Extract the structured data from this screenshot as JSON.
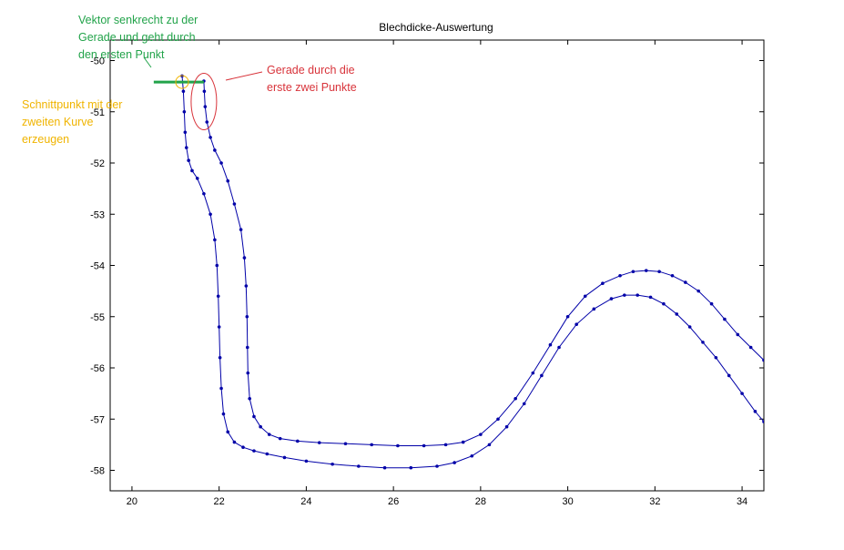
{
  "chart_data": {
    "type": "line",
    "title": "Blechdicke-Auswertung",
    "xlabel": "",
    "ylabel": "",
    "xlim": [
      19.5,
      34.5
    ],
    "ylim": [
      -58.4,
      -49.6
    ],
    "xticks": [
      20,
      22,
      24,
      26,
      28,
      30,
      32,
      34
    ],
    "yticks": [
      -50,
      -51,
      -52,
      -53,
      -54,
      -55,
      -56,
      -57,
      -58
    ],
    "xtick_labels": [
      "20",
      "22",
      "24",
      "26",
      "28",
      "30",
      "32",
      "34"
    ],
    "ytick_labels": [
      "-50",
      "-51",
      "-52",
      "-53",
      "-54",
      "-55",
      "-56",
      "-57",
      "-58"
    ],
    "grid": false,
    "legend": "none",
    "series": [
      {
        "color": "#0000a8",
        "marker": "point",
        "x": [
          21.15,
          21.18,
          21.2,
          21.22,
          21.25,
          21.3,
          21.38,
          21.5,
          21.65,
          21.8,
          21.9,
          21.95,
          21.98,
          22.0,
          22.02,
          22.05,
          22.1,
          22.2,
          22.35,
          22.55,
          22.8,
          23.1,
          23.5,
          24.0,
          24.6,
          25.2,
          25.8,
          26.4,
          27.0,
          27.4,
          27.8,
          28.2,
          28.6,
          29.0,
          29.4,
          29.8,
          30.2,
          30.6,
          31.0,
          31.3,
          31.6,
          31.9,
          32.2,
          32.5,
          32.8,
          33.1,
          33.4,
          33.7,
          34.0,
          34.3,
          34.5
        ],
        "y": [
          -50.3,
          -50.6,
          -51.0,
          -51.4,
          -51.7,
          -51.95,
          -52.15,
          -52.3,
          -52.6,
          -53.0,
          -53.5,
          -54.0,
          -54.6,
          -55.2,
          -55.8,
          -56.4,
          -56.9,
          -57.25,
          -57.45,
          -57.55,
          -57.62,
          -57.68,
          -57.75,
          -57.82,
          -57.88,
          -57.92,
          -57.95,
          -57.95,
          -57.92,
          -57.85,
          -57.72,
          -57.5,
          -57.15,
          -56.7,
          -56.15,
          -55.6,
          -55.15,
          -54.85,
          -54.65,
          -54.58,
          -54.58,
          -54.62,
          -54.75,
          -54.95,
          -55.2,
          -55.5,
          -55.8,
          -56.15,
          -56.5,
          -56.85,
          -57.05
        ]
      },
      {
        "color": "#0000a8",
        "marker": "point",
        "x": [
          21.65,
          21.66,
          21.68,
          21.72,
          21.8,
          21.9,
          22.05,
          22.2,
          22.35,
          22.5,
          22.58,
          22.62,
          22.64,
          22.65,
          22.66,
          22.7,
          22.8,
          22.95,
          23.15,
          23.4,
          23.8,
          24.3,
          24.9,
          25.5,
          26.1,
          26.7,
          27.2,
          27.6,
          28.0,
          28.4,
          28.8,
          29.2,
          29.6,
          30.0,
          30.4,
          30.8,
          31.2,
          31.5,
          31.8,
          32.1,
          32.4,
          32.7,
          33.0,
          33.3,
          33.6,
          33.9,
          34.2,
          34.5
        ],
        "y": [
          -50.4,
          -50.6,
          -50.9,
          -51.2,
          -51.5,
          -51.75,
          -52.0,
          -52.35,
          -52.8,
          -53.3,
          -53.85,
          -54.4,
          -55.0,
          -55.6,
          -56.1,
          -56.6,
          -56.95,
          -57.15,
          -57.3,
          -57.38,
          -57.43,
          -57.46,
          -57.48,
          -57.5,
          -57.52,
          -57.52,
          -57.5,
          -57.45,
          -57.3,
          -57.0,
          -56.6,
          -56.1,
          -55.55,
          -55.0,
          -54.6,
          -54.35,
          -54.2,
          -54.12,
          -54.1,
          -54.12,
          -54.2,
          -54.33,
          -54.5,
          -54.75,
          -55.05,
          -55.35,
          -55.6,
          -55.85
        ]
      }
    ],
    "annotations": {
      "green_segment": {
        "x": [
          20.5,
          21.65
        ],
        "y": [
          -50.42,
          -50.42
        ],
        "color": "#22a34a"
      },
      "yellow_circle": {
        "x": 21.15,
        "y": -50.42,
        "color": "#f0b400"
      },
      "red_ellipse": {
        "x": 21.65,
        "y": -50.8,
        "color": "#d8333a"
      }
    }
  },
  "annotations_text": {
    "green": [
      "Vektor senkrecht zu der",
      "Gerade und geht durch",
      "den ersten Punkt"
    ],
    "red": [
      "Gerade durch die",
      "erste zwei Punkte"
    ],
    "yellow": [
      "Schnittpunkt mit der",
      "zweiten Kurve",
      "erzeugen"
    ]
  }
}
